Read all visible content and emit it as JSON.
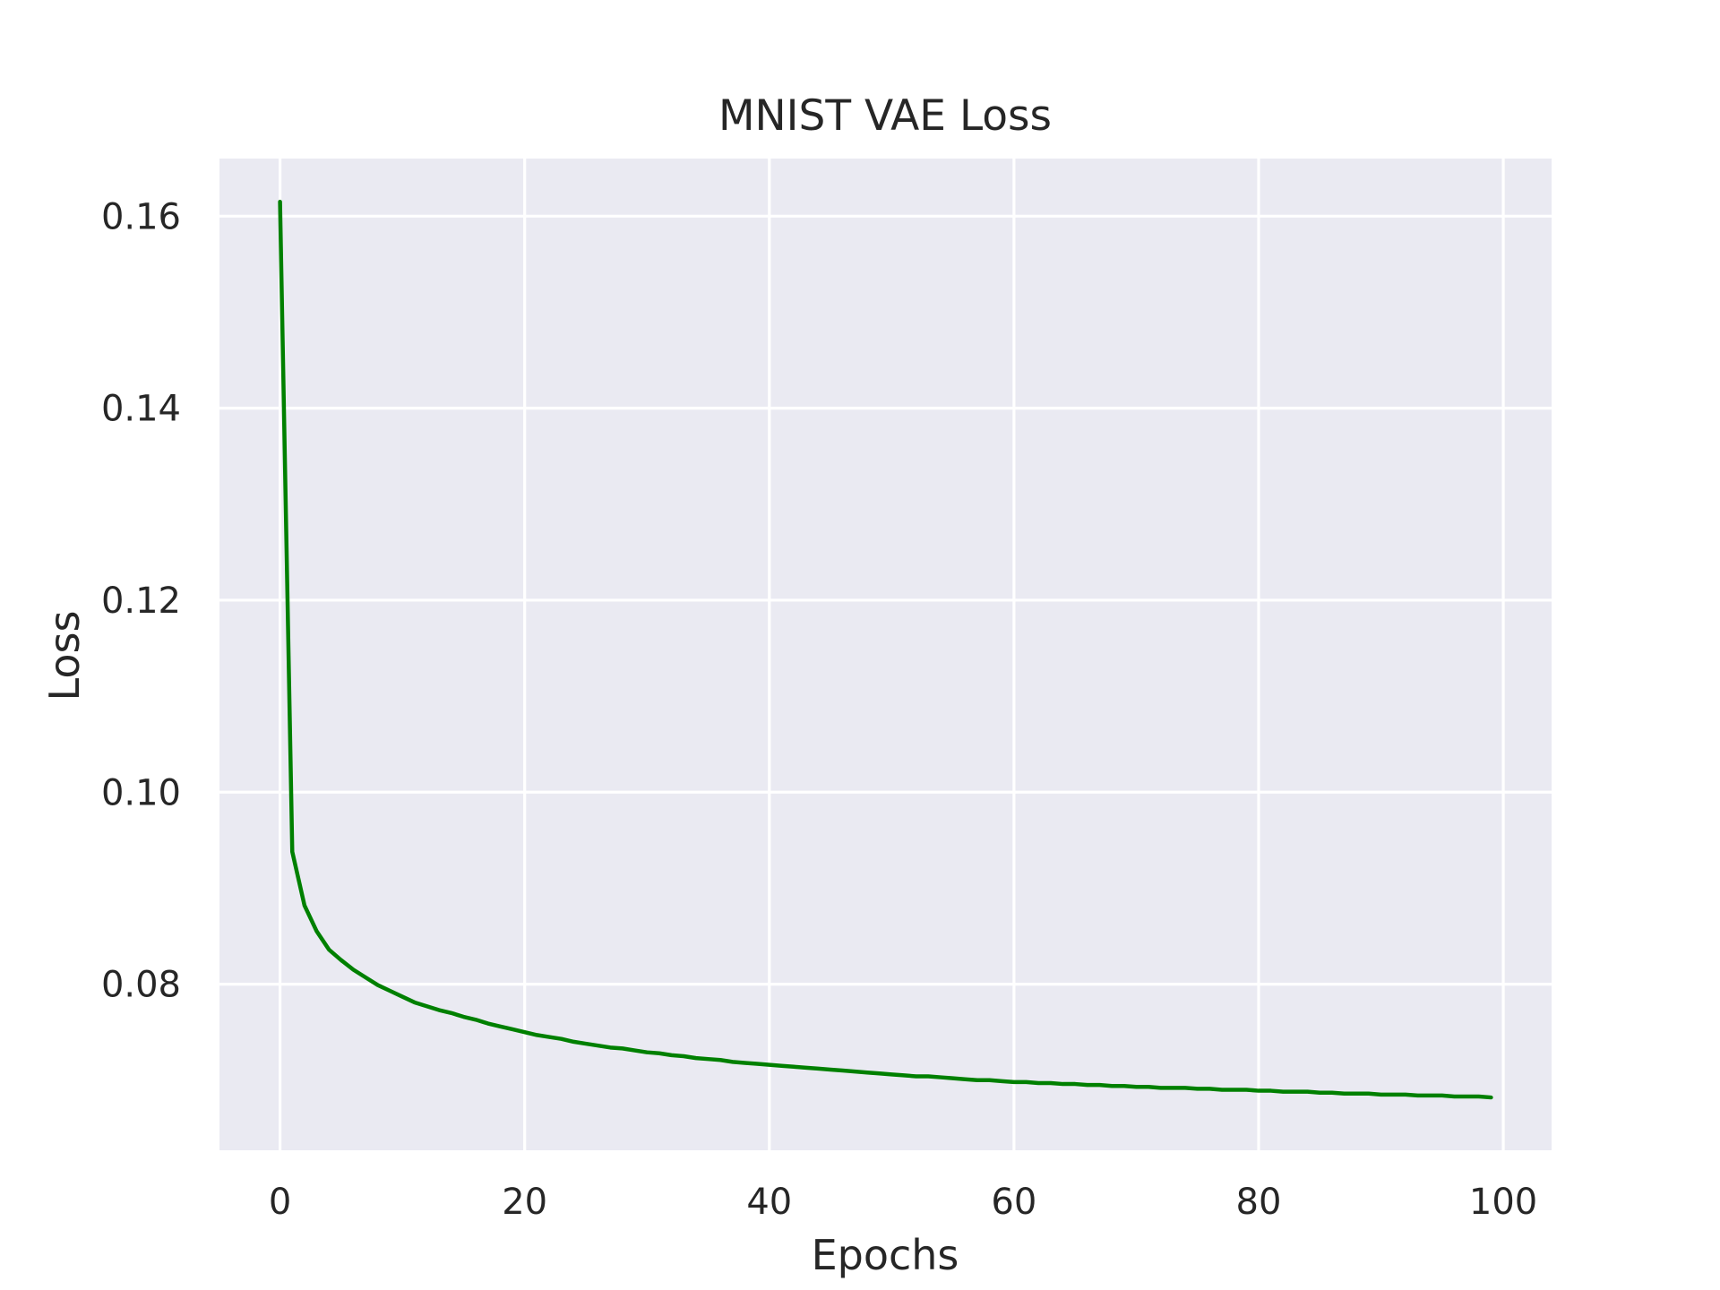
{
  "chart_data": {
    "type": "line",
    "title": "MNIST VAE Loss",
    "xlabel": "Epochs",
    "ylabel": "Loss",
    "xlim": [
      -4.95,
      103.95
    ],
    "ylim": [
      0.0627,
      0.166
    ],
    "grid": true,
    "legend": "none",
    "x_ticks": [
      0,
      20,
      40,
      60,
      80,
      100
    ],
    "x_tick_labels": [
      "0",
      "20",
      "40",
      "60",
      "80",
      "100"
    ],
    "y_ticks": [
      0.08,
      0.1,
      0.12,
      0.14,
      0.16
    ],
    "y_tick_labels": [
      "0.08",
      "0.10",
      "0.12",
      "0.14",
      "0.16"
    ],
    "colors": {
      "line": "#008000",
      "plot_background": "#eaeaf2",
      "grid": "#ffffff"
    },
    "series": [
      {
        "x": [
          0,
          1,
          2,
          3,
          4,
          5,
          6,
          7,
          8,
          9,
          10,
          11,
          12,
          13,
          14,
          15,
          16,
          17,
          18,
          19,
          20,
          21,
          22,
          23,
          24,
          25,
          26,
          27,
          28,
          29,
          30,
          31,
          32,
          33,
          34,
          35,
          36,
          37,
          38,
          39,
          40,
          41,
          42,
          43,
          44,
          45,
          46,
          47,
          48,
          49,
          50,
          51,
          52,
          53,
          54,
          55,
          56,
          57,
          58,
          59,
          60,
          61,
          62,
          63,
          64,
          65,
          66,
          67,
          68,
          69,
          70,
          71,
          72,
          73,
          74,
          75,
          76,
          77,
          78,
          79,
          80,
          81,
          82,
          83,
          84,
          85,
          86,
          87,
          88,
          89,
          90,
          91,
          92,
          93,
          94,
          95,
          96,
          97,
          98,
          99
        ],
        "values": [
          0.1615,
          0.0938,
          0.0882,
          0.0855,
          0.0836,
          0.0825,
          0.0815,
          0.0807,
          0.0799,
          0.0793,
          0.0787,
          0.0781,
          0.0777,
          0.0773,
          0.077,
          0.0766,
          0.0763,
          0.0759,
          0.0756,
          0.0753,
          0.075,
          0.0747,
          0.0745,
          0.0743,
          0.074,
          0.0738,
          0.0736,
          0.0734,
          0.0733,
          0.0731,
          0.0729,
          0.0728,
          0.0726,
          0.0725,
          0.0723,
          0.0722,
          0.0721,
          0.0719,
          0.0718,
          0.0717,
          0.0716,
          0.0715,
          0.0714,
          0.0713,
          0.0712,
          0.0711,
          0.071,
          0.0709,
          0.0708,
          0.0707,
          0.0706,
          0.0705,
          0.0704,
          0.0704,
          0.0703,
          0.0702,
          0.0701,
          0.07,
          0.07,
          0.0699,
          0.0698,
          0.0698,
          0.0697,
          0.0697,
          0.0696,
          0.0696,
          0.0695,
          0.0695,
          0.0694,
          0.0694,
          0.0693,
          0.0693,
          0.0692,
          0.0692,
          0.0692,
          0.0691,
          0.0691,
          0.069,
          0.069,
          0.069,
          0.0689,
          0.0689,
          0.0688,
          0.0688,
          0.0688,
          0.0687,
          0.0687,
          0.0686,
          0.0686,
          0.0686,
          0.0685,
          0.0685,
          0.0685,
          0.0684,
          0.0684,
          0.0684,
          0.0683,
          0.0683,
          0.0683,
          0.0682
        ]
      }
    ]
  }
}
